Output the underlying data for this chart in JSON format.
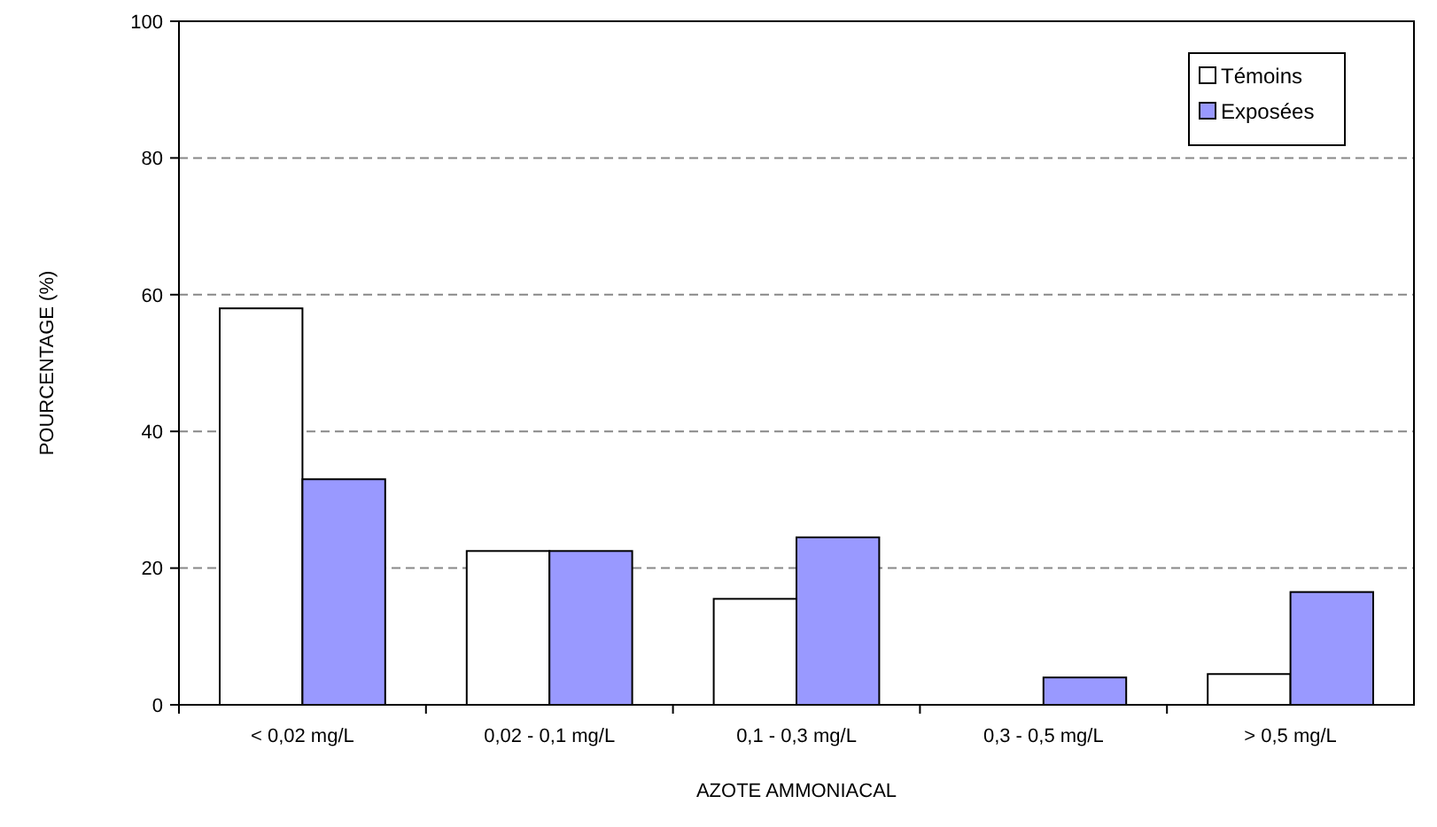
{
  "chart_data": {
    "type": "bar",
    "xlabel": "AZOTE AMMONIACAL",
    "ylabel": "POURCENTAGE (%)",
    "categories": [
      "< 0,02 mg/L",
      "0,02 - 0,1 mg/L",
      "0,1 - 0,3 mg/L",
      "0,3 - 0,5 mg/L",
      "> 0,5 mg/L"
    ],
    "series": [
      {
        "name": "Témoins",
        "color": "#ffffff",
        "values": [
          58,
          22.5,
          15.5,
          0,
          4.5
        ]
      },
      {
        "name": "Exposées",
        "color": "#9999ff",
        "values": [
          33,
          22.5,
          24.5,
          4,
          16.5
        ]
      }
    ],
    "ylim": [
      0,
      100
    ],
    "yticks": [
      0,
      20,
      40,
      60,
      80,
      100
    ],
    "grid": "y",
    "legend": "top right"
  }
}
